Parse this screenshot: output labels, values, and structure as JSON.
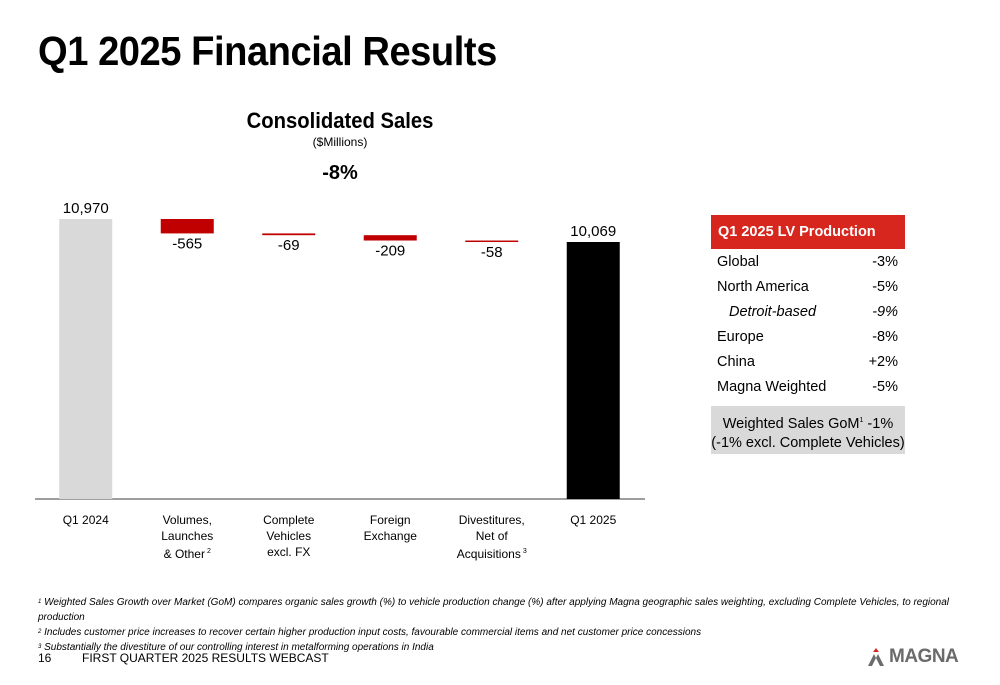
{
  "page": {
    "title": "Q1 2025 Financial Results",
    "number": "16",
    "footer_title": "FIRST QUARTER 2025 RESULTS WEBCAST"
  },
  "colors": {
    "start_bar": "#d9d9d9",
    "end_bar": "#000000",
    "decrease_bar": "#c00000",
    "accent_red": "#d7261d"
  },
  "chart_data": {
    "type": "bar",
    "subtype": "waterfall",
    "title": "Consolidated Sales",
    "subtitle": "($Millions)",
    "change_label": "-8%",
    "categories": [
      "Q1 2024",
      "Volumes,\nLaunches\n& Other",
      "Complete\nVehicles\nexcl. FX",
      "Foreign\nExchange",
      "Divestitures,\nNet of\nAcquisitions",
      "Q1 2025"
    ],
    "category_footnotes": [
      "",
      "2",
      "",
      "",
      "3",
      ""
    ],
    "values": [
      10970,
      -565,
      -69,
      -209,
      -58,
      10069
    ],
    "value_labels": [
      "10,970",
      "-565",
      "-69",
      "-209",
      "-58",
      "10,069"
    ],
    "bar_kinds": [
      "total",
      "delta",
      "delta",
      "delta",
      "delta",
      "total"
    ]
  },
  "lv_production": {
    "header": "Q1 2025 LV Production",
    "rows": [
      {
        "label": "Global",
        "value": "-3%"
      },
      {
        "label": "North America",
        "value": "-5%"
      },
      {
        "label": "Detroit-based",
        "value": "-9%"
      },
      {
        "label": "Europe",
        "value": "-8%"
      },
      {
        "label": "China",
        "value": "+2%"
      },
      {
        "label": "Magna Weighted",
        "value": "-5%"
      }
    ],
    "gom_label": "Weighted Sales GoM",
    "gom_sup": "1",
    "gom_value": " -1%",
    "gom_note": "(-1% excl. Complete Vehicles)"
  },
  "footnotes": [
    {
      "num": "1",
      "text": " Weighted Sales Growth over Market (GoM) compares organic sales growth (%) to vehicle production change (%) after applying Magna geographic sales weighting, excluding Complete Vehicles, to regional production"
    },
    {
      "num": "2",
      "text": " Includes customer price increases to recover certain higher production input costs, favourable commercial items and net customer price concessions"
    },
    {
      "num": "3",
      "text": " Substantially the divestiture of our controlling interest in metalforming operations in India"
    }
  ],
  "logo": {
    "text": "MAGNA"
  }
}
